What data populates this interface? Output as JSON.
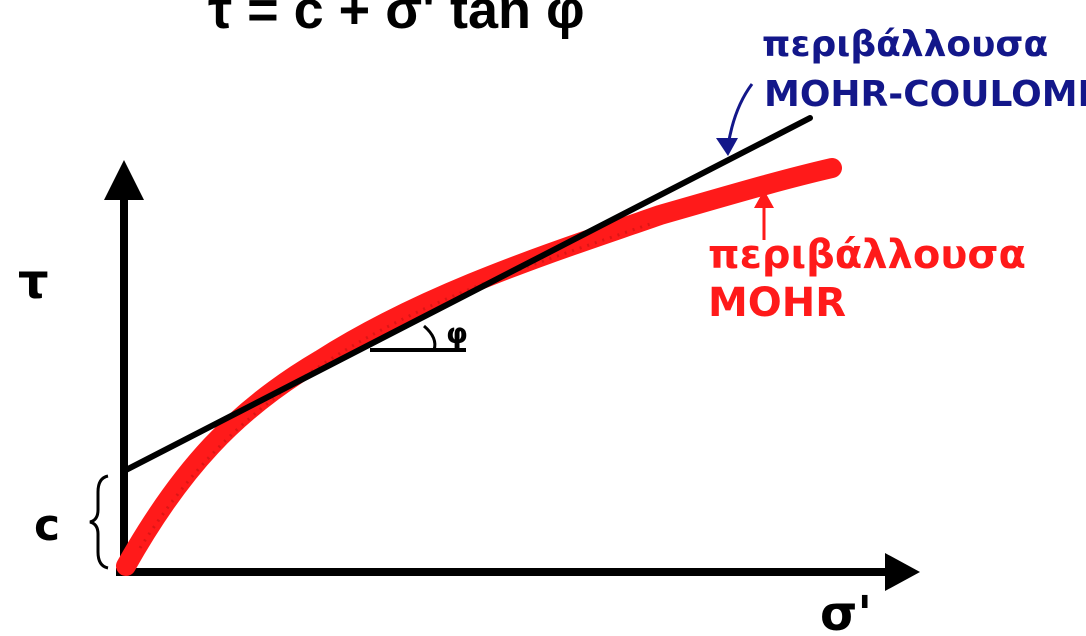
{
  "formula": "τ = c + σ' tan φ",
  "labels": {
    "mohr_coulomb_line1": "περιβάλλουσα",
    "mohr_coulomb_line2": "MOHR-COULOMB",
    "mohr_line1": "περιβάλλουσα",
    "mohr_line2": "MOHR",
    "y_axis": "τ",
    "x_axis": "σ'",
    "intercept": "c",
    "angle": "φ"
  },
  "colors": {
    "axes": "#000000",
    "mohr_coulomb": "#13178a",
    "mohr_envelope": "#ff1a1a"
  }
}
